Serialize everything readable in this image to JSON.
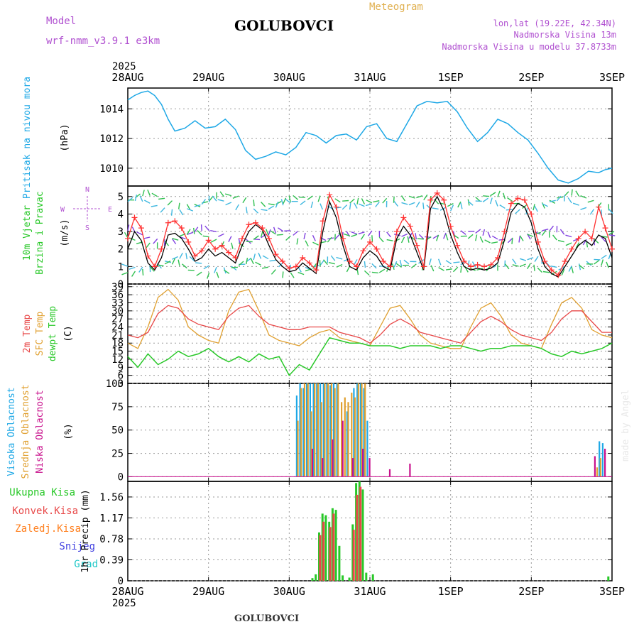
{
  "header": {
    "model_label": "Model",
    "model_name": "wrf-nmm_v3.9.1  e3km",
    "title": "GOLUBOVCI",
    "meteogram_label": "Meteogram",
    "lonlat": "lon,lat (19.22E, 42.34N)",
    "altitude": "Nadmorska Visina 13m",
    "model_altitude": "Nadmorska Visina u modelu 37.8733m",
    "year_top": "2025",
    "year_bottom": "2025",
    "footer_title": "GOLUBOVCI",
    "watermark": "made by Angel"
  },
  "colors": {
    "pressure": "#1ea8e6",
    "wind_speed": "#000000",
    "gust": "#ff3030",
    "temp2m": "#e84848",
    "sfc_temp": "#e0a030",
    "dewpt": "#28c828",
    "high_cloud": "#1ea8e6",
    "mid_cloud": "#e0a030",
    "low_cloud": "#c8108c",
    "total_precip": "#28c828",
    "conv_precip": "#e84848",
    "frz_precip": "#ff8020",
    "snow": "#4040e0",
    "hail": "#20c8c8",
    "grid": "#999999"
  },
  "chart_data": [
    {
      "type": "line",
      "name": "pressure",
      "ylabel": [
        "Pritisak na nivou mora",
        "(hPa)"
      ],
      "x_ticks": [
        "28AUG",
        "29AUG",
        "30AUG",
        "31AUG",
        "1SEP",
        "2SEP",
        "3SEP"
      ],
      "x_range_hours": [
        0,
        144
      ],
      "ylim": [
        1008.8,
        1015.4
      ],
      "y_ticks": [
        1010,
        1012,
        1014
      ],
      "grid": true,
      "series": [
        {
          "name": "",
          "x": [
            0,
            2,
            4,
            6,
            8,
            10,
            12,
            14,
            17,
            20,
            23,
            26,
            29,
            32,
            35,
            38,
            41,
            44,
            47,
            50,
            53,
            56,
            59,
            62,
            65,
            68,
            71,
            74,
            77,
            80,
            83,
            86,
            89,
            92,
            95,
            98,
            101,
            104,
            107,
            110,
            113,
            116,
            119,
            122,
            125,
            128,
            131,
            134,
            137,
            140,
            142,
            144
          ],
          "values": [
            1014.6,
            1014.9,
            1015.1,
            1015.2,
            1014.9,
            1014.3,
            1013.3,
            1012.5,
            1012.7,
            1013.2,
            1012.7,
            1012.8,
            1013.3,
            1012.6,
            1011.2,
            1010.6,
            1010.8,
            1011.1,
            1010.9,
            1011.4,
            1012.4,
            1012.2,
            1011.7,
            1012.2,
            1012.3,
            1011.9,
            1012.8,
            1013.0,
            1012.0,
            1011.8,
            1013.0,
            1014.2,
            1014.5,
            1014.4,
            1014.5,
            1013.8,
            1012.7,
            1011.8,
            1012.4,
            1013.3,
            1013.0,
            1012.4,
            1011.9,
            1011.0,
            1010.0,
            1009.2,
            1009.0,
            1009.3,
            1009.8,
            1009.7,
            1009.9,
            1010.0
          ]
        }
      ]
    },
    {
      "type": "line",
      "name": "wind",
      "ylabel": [
        "10m Vjetar",
        "Brzina i Pravac",
        "(m/s)"
      ],
      "compass": {
        "n": "N",
        "w": "W",
        "e": "E",
        "s": "S"
      },
      "x_range_hours": [
        0,
        144
      ],
      "ylim": [
        0,
        5.6
      ],
      "y_ticks": [
        0,
        1,
        2,
        3,
        4,
        5
      ],
      "grid": true,
      "series": [
        {
          "name": "speed",
          "x": [
            0,
            2,
            4,
            6,
            8,
            10,
            12,
            14,
            16,
            18,
            20,
            22,
            24,
            26,
            28,
            30,
            32,
            34,
            36,
            38,
            40,
            42,
            44,
            46,
            48,
            50,
            52,
            54,
            56,
            58,
            60,
            62,
            64,
            66,
            68,
            70,
            72,
            74,
            76,
            78,
            80,
            82,
            84,
            86,
            88,
            90,
            92,
            94,
            96,
            98,
            100,
            102,
            104,
            106,
            108,
            110,
            112,
            114,
            116,
            118,
            120,
            122,
            124,
            126,
            128,
            130,
            132,
            134,
            136,
            138,
            140,
            142,
            144
          ],
          "values": [
            2.0,
            3.0,
            2.5,
            1.2,
            0.8,
            1.5,
            2.8,
            2.9,
            2.6,
            2.0,
            1.3,
            1.5,
            2.0,
            1.6,
            1.8,
            1.5,
            1.2,
            2.2,
            3.0,
            3.4,
            3.1,
            2.2,
            1.4,
            1.0,
            0.7,
            0.8,
            1.2,
            0.9,
            0.6,
            3.0,
            4.7,
            3.8,
            2.2,
            1.0,
            0.8,
            1.5,
            1.9,
            1.6,
            1.0,
            0.8,
            2.6,
            3.3,
            2.8,
            1.8,
            0.8,
            4.3,
            5.0,
            4.2,
            2.8,
            1.8,
            1.0,
            0.8,
            0.9,
            0.8,
            0.9,
            1.2,
            2.5,
            4.1,
            4.6,
            4.4,
            3.5,
            2.0,
            1.0,
            0.6,
            0.4,
            1.0,
            1.6,
            2.2,
            2.5,
            2.2,
            2.8,
            2.6,
            1.5
          ]
        },
        {
          "name": "gust",
          "x": [
            0,
            2,
            4,
            6,
            8,
            10,
            12,
            14,
            16,
            18,
            20,
            22,
            24,
            26,
            28,
            30,
            32,
            34,
            36,
            38,
            40,
            42,
            44,
            46,
            48,
            50,
            52,
            54,
            56,
            58,
            60,
            62,
            64,
            66,
            68,
            70,
            72,
            74,
            76,
            78,
            80,
            82,
            84,
            86,
            88,
            90,
            92,
            94,
            96,
            98,
            100,
            102,
            104,
            106,
            108,
            110,
            112,
            114,
            116,
            118,
            120,
            122,
            124,
            126,
            128,
            130,
            132,
            134,
            136,
            138,
            140,
            142,
            144
          ],
          "values": [
            2.6,
            3.8,
            3.2,
            1.6,
            1.0,
            2.0,
            3.5,
            3.6,
            3.2,
            2.4,
            1.6,
            1.9,
            2.5,
            2.0,
            2.2,
            1.8,
            1.5,
            2.6,
            3.4,
            3.5,
            3.2,
            2.6,
            1.7,
            1.3,
            0.9,
            1.0,
            1.5,
            1.2,
            0.8,
            3.6,
            5.1,
            4.4,
            2.6,
            1.3,
            1.0,
            1.9,
            2.4,
            2.0,
            1.3,
            1.0,
            3.0,
            3.8,
            3.3,
            2.2,
            1.0,
            4.8,
            5.2,
            4.8,
            3.3,
            2.2,
            1.3,
            1.0,
            1.1,
            1.0,
            1.1,
            1.5,
            3.0,
            4.6,
            4.9,
            4.8,
            4.0,
            2.4,
            1.3,
            0.8,
            0.5,
            1.3,
            2.0,
            2.6,
            3.0,
            2.6,
            4.4,
            3.2,
            2.0
          ]
        }
      ]
    },
    {
      "type": "line",
      "name": "temperature",
      "ylabel": [
        "2m Temp",
        "SFC Temp",
        "dewpt Temp",
        "(C)"
      ],
      "x_range_hours": [
        0,
        144
      ],
      "ylim": [
        3,
        40
      ],
      "y_ticks": [
        3,
        6,
        9,
        12,
        15,
        18,
        21,
        24,
        27,
        30,
        33,
        36,
        39
      ],
      "grid": true,
      "series": [
        {
          "name": "2m Temp",
          "x": [
            0,
            3,
            6,
            9,
            12,
            15,
            18,
            21,
            24,
            27,
            30,
            33,
            36,
            39,
            42,
            45,
            48,
            51,
            54,
            57,
            60,
            63,
            66,
            69,
            72,
            75,
            78,
            81,
            84,
            87,
            90,
            93,
            96,
            99,
            102,
            105,
            108,
            111,
            114,
            117,
            120,
            123,
            126,
            129,
            132,
            135,
            138,
            141,
            144
          ],
          "values": [
            21,
            20,
            22,
            29,
            32,
            31,
            27,
            25,
            24,
            23,
            28,
            31,
            32,
            28,
            25,
            24,
            23,
            23,
            24,
            24,
            24,
            22,
            21,
            20,
            18,
            21,
            25,
            27,
            25,
            22,
            21,
            20,
            19,
            18,
            22,
            26,
            28,
            26,
            23,
            21,
            20,
            19,
            22,
            27,
            30,
            30,
            26,
            22,
            22
          ]
        },
        {
          "name": "SFC Temp",
          "x": [
            0,
            3,
            6,
            9,
            12,
            15,
            18,
            21,
            24,
            27,
            30,
            33,
            36,
            39,
            42,
            45,
            48,
            51,
            54,
            57,
            60,
            63,
            66,
            69,
            72,
            75,
            78,
            81,
            84,
            87,
            90,
            93,
            96,
            99,
            102,
            105,
            108,
            111,
            114,
            117,
            120,
            123,
            126,
            129,
            132,
            135,
            138,
            141,
            144
          ],
          "values": [
            18,
            16,
            24,
            35,
            38,
            34,
            24,
            21,
            19,
            18,
            30,
            37,
            38,
            30,
            21,
            19,
            18,
            17,
            20,
            22,
            23,
            20,
            19,
            18,
            17,
            24,
            31,
            32,
            27,
            21,
            18,
            17,
            16,
            16,
            24,
            31,
            33,
            28,
            21,
            18,
            17,
            16,
            25,
            33,
            35,
            31,
            23,
            21,
            20
          ]
        },
        {
          "name": "dewpt Temp",
          "x": [
            0,
            3,
            6,
            9,
            12,
            15,
            18,
            21,
            24,
            27,
            30,
            33,
            36,
            39,
            42,
            45,
            48,
            51,
            54,
            57,
            60,
            63,
            66,
            69,
            72,
            75,
            78,
            81,
            84,
            87,
            90,
            93,
            96,
            99,
            102,
            105,
            108,
            111,
            114,
            117,
            120,
            123,
            126,
            129,
            132,
            135,
            138,
            141,
            144
          ],
          "values": [
            13,
            9,
            14,
            10,
            12,
            15,
            13,
            14,
            16,
            13,
            11,
            13,
            11,
            14,
            12,
            13,
            6,
            10,
            8,
            14,
            20,
            19,
            18,
            18,
            17,
            17,
            17,
            16,
            17,
            17,
            17,
            16,
            17,
            17,
            16,
            15,
            16,
            16,
            17,
            17,
            17,
            16,
            14,
            13,
            15,
            14,
            15,
            16,
            18
          ]
        }
      ]
    },
    {
      "type": "bar",
      "name": "clouds",
      "ylabel": [
        "Visoka Oblacnost",
        "Srednja Oblacnost",
        "Niska Oblacnost",
        "(%)"
      ],
      "x_range_hours": [
        0,
        144
      ],
      "ylim": [
        -5,
        100
      ],
      "y_ticks": [
        0,
        25,
        50,
        75,
        100
      ],
      "grid": true,
      "series": [
        {
          "name": "Visoka Oblacnost",
          "x": [
            50,
            51,
            52,
            53,
            54,
            55,
            56,
            57,
            58,
            59,
            60,
            61,
            62,
            65,
            67,
            68,
            69,
            70,
            71,
            140,
            141
          ],
          "values": [
            87,
            100,
            95,
            100,
            100,
            100,
            100,
            100,
            100,
            100,
            98,
            100,
            100,
            70,
            95,
            100,
            100,
            95,
            60,
            38,
            36
          ]
        },
        {
          "name": "Srednja Oblacnost",
          "x": [
            50,
            51,
            52,
            53,
            54,
            55,
            56,
            57,
            58,
            59,
            60,
            61,
            62,
            63,
            64,
            65,
            66,
            67,
            68,
            69,
            70,
            139,
            140
          ],
          "values": [
            60,
            95,
            100,
            100,
            70,
            100,
            100,
            80,
            100,
            100,
            100,
            95,
            100,
            80,
            85,
            80,
            90,
            85,
            100,
            100,
            100,
            10,
            20
          ]
        },
        {
          "name": "Niska Oblacnost",
          "x": [
            54,
            57,
            60,
            63,
            66,
            69,
            71,
            77,
            83,
            138,
            141
          ],
          "values": [
            30,
            20,
            40,
            60,
            20,
            30,
            20,
            8,
            14,
            22,
            30
          ]
        }
      ]
    },
    {
      "type": "bar",
      "name": "precipitation",
      "ylabel": [
        "Ukupna Kisa",
        "Konvek.Kisa",
        "Zaledj.Kisa",
        "Snijeg",
        "Grad",
        "1hr Precip (mm)"
      ],
      "x_ticks": [
        "28AUG",
        "29AUG",
        "30AUG",
        "31AUG",
        "1SEP",
        "2SEP",
        "3SEP"
      ],
      "x_range_hours": [
        0,
        144
      ],
      "ylim": [
        0,
        1.85
      ],
      "y_ticks": [
        0,
        0.39,
        0.78,
        1.17,
        1.56
      ],
      "y_tick_labels": [
        "0",
        "0.39",
        "0.78",
        "1.17",
        "1.56"
      ],
      "grid": true,
      "series": [
        {
          "name": "Ukupna Kisa",
          "x": [
            55,
            56,
            57,
            58,
            59,
            60,
            61,
            62,
            63,
            64,
            66,
            67,
            68,
            69,
            70,
            71,
            73,
            143
          ],
          "values": [
            0.05,
            0.12,
            0.9,
            1.25,
            1.22,
            1.1,
            1.35,
            1.32,
            0.65,
            0.1,
            0.06,
            1.05,
            1.82,
            1.85,
            1.7,
            0.15,
            0.12,
            0.08
          ]
        },
        {
          "name": "Konvek.Kisa",
          "x": [
            57,
            58,
            60,
            61,
            67,
            68,
            69
          ],
          "values": [
            0.85,
            1.1,
            1.0,
            1.25,
            0.95,
            1.6,
            1.75
          ]
        }
      ]
    }
  ]
}
